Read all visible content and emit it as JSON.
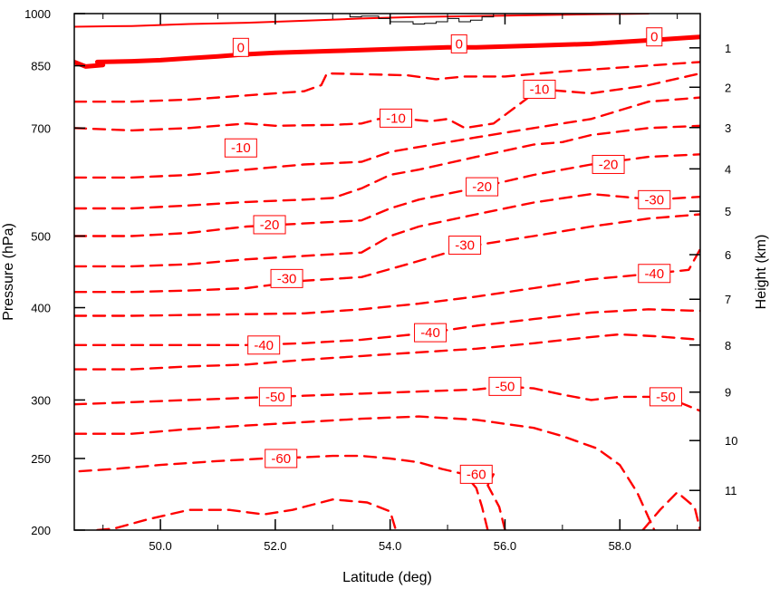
{
  "chart_data": {
    "type": "contour",
    "xlabel": "Latitude (deg)",
    "ylabel_left": "Pressure (hPa)",
    "ylabel_right": "Height (km)",
    "xlim": [
      48.5,
      59.4
    ],
    "x_ticks": [
      "50.0",
      "52.0",
      "54.0",
      "56.0",
      "58.0"
    ],
    "pressure_range_hpa": [
      1000,
      200
    ],
    "pressure_scale": "log",
    "pressure_ticks": [
      "200",
      "250",
      "300",
      "400",
      "500",
      "700",
      "850",
      "1000"
    ],
    "height_ticks": [
      "1",
      "2",
      "3",
      "4",
      "5",
      "6",
      "7",
      "8",
      "9",
      "10",
      "11"
    ],
    "line_color": "#ff0000",
    "terrain_color": "#000000",
    "negative_contours_dashed": true,
    "zero_contour_bold": true,
    "contour_labels": [
      {
        "text": "-60",
        "lat": 52.1,
        "p": 250
      },
      {
        "text": "-60",
        "lat": 55.5,
        "p": 238
      },
      {
        "text": "-50",
        "lat": 52.0,
        "p": 303
      },
      {
        "text": "-50",
        "lat": 56.0,
        "p": 313
      },
      {
        "text": "-50",
        "lat": 58.8,
        "p": 303
      },
      {
        "text": "-40",
        "lat": 51.8,
        "p": 356
      },
      {
        "text": "-40",
        "lat": 54.7,
        "p": 370
      },
      {
        "text": "-40",
        "lat": 58.6,
        "p": 445
      },
      {
        "text": "-30",
        "lat": 52.2,
        "p": 438
      },
      {
        "text": "-30",
        "lat": 55.3,
        "p": 486
      },
      {
        "text": "-30",
        "lat": 58.6,
        "p": 560
      },
      {
        "text": "-20",
        "lat": 51.9,
        "p": 518
      },
      {
        "text": "-20",
        "lat": 55.6,
        "p": 583
      },
      {
        "text": "-20",
        "lat": 57.8,
        "p": 625
      },
      {
        "text": "-10",
        "lat": 51.4,
        "p": 658
      },
      {
        "text": "-10",
        "lat": 54.1,
        "p": 722
      },
      {
        "text": "-10",
        "lat": 56.6,
        "p": 790
      },
      {
        "text": "0",
        "lat": 51.4,
        "p": 900
      },
      {
        "text": "0",
        "lat": 55.2,
        "p": 910
      },
      {
        "text": "0",
        "lat": 58.6,
        "p": 930
      }
    ],
    "contours": [
      {
        "level": -60,
        "points": [
          [
            48.9,
            200
          ],
          [
            49.2,
            201
          ],
          [
            49.8,
            207
          ],
          [
            50.5,
            213
          ],
          [
            51.2,
            213
          ],
          [
            51.8,
            210
          ],
          [
            52.3,
            213
          ],
          [
            53.0,
            220
          ],
          [
            53.6,
            218
          ],
          [
            54.0,
            212
          ],
          [
            54.1,
            200
          ]
        ]
      },
      {
        "level": -60,
        "points": [
          [
            55.7,
            200
          ],
          [
            55.6,
            215
          ],
          [
            55.5,
            228
          ],
          [
            55.3,
            238
          ],
          [
            54.9,
            242
          ],
          [
            54.5,
            247
          ],
          [
            54.0,
            250
          ],
          [
            53.5,
            252
          ],
          [
            53.0,
            252
          ],
          [
            52.5,
            251
          ],
          [
            51.8,
            250
          ],
          [
            51.0,
            248
          ],
          [
            50.0,
            245
          ],
          [
            49.2,
            242
          ],
          [
            48.5,
            240
          ]
        ]
      },
      {
        "level": -60,
        "points": [
          [
            56.0,
            200
          ],
          [
            55.9,
            215
          ],
          [
            55.7,
            230
          ],
          [
            55.8,
            238
          ]
        ]
      },
      {
        "level": -50,
        "points": [
          [
            48.5,
            270
          ],
          [
            49.5,
            270
          ],
          [
            50.5,
            274
          ],
          [
            51.5,
            277
          ],
          [
            52.5,
            280
          ],
          [
            53.5,
            283
          ],
          [
            54.5,
            285
          ],
          [
            55.5,
            282
          ],
          [
            56.5,
            275
          ],
          [
            57.0,
            268
          ],
          [
            57.6,
            258
          ],
          [
            58.0,
            245
          ],
          [
            58.3,
            225
          ],
          [
            58.5,
            208
          ],
          [
            58.6,
            200
          ]
        ]
      },
      {
        "level": -50,
        "points": [
          [
            48.5,
            296
          ],
          [
            49.5,
            298
          ],
          [
            50.5,
            300
          ],
          [
            51.5,
            302
          ],
          [
            52.5,
            304
          ],
          [
            53.5,
            306
          ],
          [
            54.5,
            308
          ],
          [
            55.5,
            310
          ],
          [
            56.0,
            313
          ],
          [
            56.5,
            311
          ],
          [
            57.0,
            305
          ],
          [
            57.5,
            300
          ],
          [
            58.0,
            303
          ],
          [
            58.8,
            303
          ],
          [
            59.4,
            290
          ]
        ]
      },
      {
        "level": -50,
        "points": [
          [
            58.4,
            200
          ],
          [
            58.7,
            213
          ],
          [
            59.0,
            225
          ],
          [
            59.3,
            215
          ],
          [
            59.4,
            200
          ]
        ]
      },
      {
        "level": -40,
        "points": [
          [
            48.5,
            330
          ],
          [
            49.5,
            330
          ],
          [
            50.5,
            333
          ],
          [
            51.5,
            335
          ],
          [
            52.5,
            340
          ],
          [
            53.5,
            344
          ],
          [
            54.5,
            348
          ],
          [
            55.5,
            352
          ],
          [
            56.5,
            358
          ],
          [
            57.5,
            365
          ],
          [
            58.0,
            368
          ],
          [
            58.6,
            366
          ],
          [
            59.4,
            362
          ]
        ]
      },
      {
        "level": -40,
        "points": [
          [
            48.5,
            356
          ],
          [
            49.5,
            356
          ],
          [
            50.5,
            356
          ],
          [
            51.5,
            356
          ],
          [
            52.5,
            358
          ],
          [
            53.5,
            362
          ],
          [
            54.7,
            370
          ],
          [
            55.5,
            378
          ],
          [
            56.5,
            386
          ],
          [
            57.5,
            394
          ],
          [
            58.5,
            398
          ],
          [
            59.4,
            396
          ]
        ]
      },
      {
        "level": -40,
        "points": [
          [
            48.5,
            390
          ],
          [
            49.5,
            390
          ],
          [
            50.5,
            391
          ],
          [
            51.5,
            392
          ],
          [
            52.5,
            393
          ],
          [
            53.5,
            398
          ],
          [
            54.5,
            405
          ],
          [
            55.5,
            414
          ],
          [
            56.5,
            425
          ],
          [
            57.5,
            437
          ],
          [
            58.6,
            445
          ],
          [
            59.2,
            450
          ],
          [
            59.4,
            480
          ]
        ]
      },
      {
        "level": -30,
        "points": [
          [
            48.5,
            420
          ],
          [
            49.5,
            420
          ],
          [
            50.5,
            422
          ],
          [
            51.5,
            425
          ],
          [
            52.5,
            435
          ],
          [
            53.5,
            440
          ],
          [
            54.3,
            458
          ],
          [
            55.0,
            475
          ],
          [
            55.5,
            486
          ],
          [
            56.5,
            500
          ],
          [
            57.5,
            515
          ],
          [
            58.5,
            528
          ],
          [
            59.4,
            535
          ]
        ]
      },
      {
        "level": -30,
        "points": [
          [
            48.5,
            455
          ],
          [
            49.5,
            455
          ],
          [
            50.5,
            458
          ],
          [
            51.5,
            465
          ],
          [
            52.5,
            470
          ],
          [
            53.5,
            475
          ],
          [
            54.0,
            500
          ],
          [
            54.5,
            515
          ],
          [
            55.5,
            535
          ],
          [
            56.5,
            555
          ],
          [
            57.5,
            570
          ],
          [
            58.6,
            560
          ],
          [
            59.4,
            565
          ]
        ]
      },
      {
        "level": -20,
        "points": [
          [
            48.5,
            500
          ],
          [
            49.5,
            500
          ],
          [
            50.5,
            505
          ],
          [
            51.5,
            515
          ],
          [
            52.5,
            520
          ],
          [
            53.5,
            525
          ],
          [
            54.0,
            545
          ],
          [
            54.5,
            560
          ],
          [
            55.6,
            583
          ],
          [
            56.5,
            605
          ],
          [
            57.5,
            625
          ],
          [
            58.5,
            640
          ],
          [
            59.4,
            645
          ]
        ]
      },
      {
        "level": -20,
        "points": [
          [
            48.5,
            545
          ],
          [
            49.5,
            545
          ],
          [
            50.5,
            550
          ],
          [
            51.5,
            556
          ],
          [
            52.5,
            560
          ],
          [
            53.0,
            563
          ],
          [
            53.5,
            580
          ],
          [
            54.0,
            605
          ],
          [
            54.5,
            615
          ],
          [
            55.5,
            640
          ],
          [
            56.5,
            665
          ],
          [
            57.0,
            670
          ],
          [
            57.5,
            685
          ],
          [
            58.5,
            700
          ],
          [
            59.4,
            705
          ]
        ]
      },
      {
        "level": -10,
        "points": [
          [
            48.5,
            600
          ],
          [
            49.5,
            600
          ],
          [
            50.5,
            605
          ],
          [
            51.5,
            615
          ],
          [
            52.5,
            625
          ],
          [
            53.5,
            630
          ],
          [
            54.0,
            650
          ],
          [
            54.5,
            660
          ],
          [
            55.5,
            680
          ],
          [
            56.0,
            690
          ],
          [
            56.5,
            700
          ],
          [
            57.5,
            720
          ],
          [
            58.5,
            760
          ],
          [
            59.4,
            770
          ]
        ]
      },
      {
        "level": -10,
        "points": [
          [
            48.5,
            700
          ],
          [
            49.5,
            695
          ],
          [
            50.5,
            700
          ],
          [
            51.5,
            710
          ],
          [
            52.0,
            705
          ],
          [
            53.0,
            707
          ],
          [
            53.5,
            710
          ],
          [
            53.8,
            720
          ],
          [
            54.1,
            722
          ],
          [
            54.7,
            715
          ],
          [
            55.0,
            720
          ],
          [
            55.3,
            700
          ],
          [
            55.8,
            710
          ],
          [
            56.6,
            790
          ],
          [
            57.5,
            780
          ],
          [
            58.5,
            800
          ],
          [
            59.4,
            830
          ]
        ]
      },
      {
        "level": -10,
        "points": [
          [
            48.5,
            760
          ],
          [
            49.5,
            760
          ],
          [
            50.5,
            765
          ],
          [
            51.5,
            775
          ],
          [
            52.5,
            785
          ],
          [
            52.8,
            800
          ],
          [
            52.9,
            830
          ],
          [
            53.5,
            828
          ],
          [
            54.3,
            825
          ],
          [
            54.8,
            815
          ],
          [
            55.3,
            822
          ],
          [
            56.0,
            822
          ],
          [
            57.0,
            835
          ],
          [
            58.0,
            845
          ],
          [
            59.4,
            860
          ]
        ]
      },
      {
        "level": 0,
        "bold": true,
        "points": [
          [
            48.5,
            860
          ],
          [
            48.7,
            848
          ],
          [
            49.0,
            852
          ],
          [
            48.9,
            860
          ],
          [
            49.5,
            862
          ],
          [
            50.0,
            865
          ],
          [
            50.5,
            870
          ],
          [
            51.0,
            875
          ],
          [
            51.4,
            880
          ],
          [
            52.0,
            885
          ],
          [
            53.0,
            890
          ],
          [
            54.0,
            895
          ],
          [
            55.0,
            900
          ],
          [
            55.5,
            900
          ],
          [
            56.5,
            905
          ],
          [
            57.5,
            910
          ],
          [
            58.5,
            920
          ],
          [
            59.4,
            930
          ]
        ]
      },
      {
        "level": 0,
        "points": [
          [
            48.5,
            960
          ],
          [
            49.5,
            962
          ],
          [
            50.5,
            968
          ],
          [
            51.5,
            972
          ],
          [
            52.5,
            978
          ],
          [
            53.5,
            985
          ],
          [
            54.5,
            990
          ],
          [
            55.5,
            992
          ],
          [
            56.5,
            995
          ],
          [
            57.5,
            998
          ],
          [
            58.5,
            1000
          ]
        ]
      }
    ],
    "terrain": [
      [
        53.2,
        1000
      ],
      [
        53.3,
        990
      ],
      [
        53.5,
        992
      ],
      [
        53.8,
        985
      ],
      [
        54.0,
        975
      ],
      [
        54.2,
        975
      ],
      [
        54.4,
        968
      ],
      [
        54.6,
        970
      ],
      [
        54.8,
        975
      ],
      [
        55.0,
        985
      ],
      [
        55.2,
        975
      ],
      [
        55.4,
        980
      ],
      [
        55.6,
        990
      ],
      [
        55.8,
        1000
      ]
    ]
  }
}
